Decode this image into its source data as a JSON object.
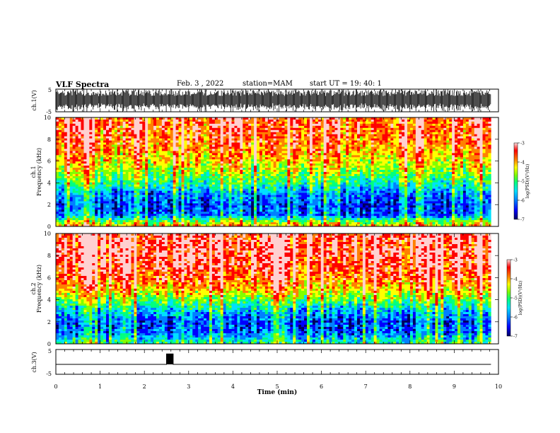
{
  "header": {
    "title": "VLF Spectra",
    "date": "Feb. 3  , 2022",
    "station": "station=MAM",
    "start": "start  UT  =   19: 40: 1"
  },
  "colors": {
    "spectrum": [
      "#000060",
      "#0000ff",
      "#0080ff",
      "#00e0ff",
      "#00ff80",
      "#80ff00",
      "#ffff00",
      "#ff8000",
      "#ff0000",
      "#ffd0d0"
    ]
  },
  "chart_data": [
    {
      "type": "line",
      "ylabel": "ch.1(V)",
      "ylim": [
        -5,
        5
      ],
      "yticks": [
        "5",
        "-5"
      ],
      "note": "dense broadband waveform"
    },
    {
      "type": "heatmap",
      "ylabel": "Frequency  (kHz)",
      "channel_label": "ch.1",
      "ylim": [
        0,
        10
      ],
      "yticks": [
        "0",
        "2",
        "4",
        "6",
        "8",
        "10"
      ],
      "colorbar": {
        "label": "log(PSD)(V²/Hz)",
        "ticks": [
          "-3",
          "-4",
          "-5",
          "-6",
          "-7"
        ],
        "range": [
          -7,
          -3
        ]
      },
      "profile": {
        "freq_khz": [
          0,
          0.5,
          1,
          2,
          3,
          4,
          5,
          6,
          7,
          8,
          9,
          10
        ],
        "log_psd": [
          -4.2,
          -5.0,
          -6.1,
          -6.3,
          -6.0,
          -5.3,
          -4.8,
          -4.4,
          -4.1,
          -3.9,
          -3.8,
          -3.8
        ]
      }
    },
    {
      "type": "heatmap",
      "ylabel": "Frequency  (kHz)",
      "channel_label": "ch.2",
      "ylim": [
        0,
        10
      ],
      "yticks": [
        "0",
        "2",
        "4",
        "6",
        "8",
        "10"
      ],
      "colorbar": {
        "label": "log(PSD)(V²/Hz)",
        "ticks": [
          "-3",
          "-4",
          "-5",
          "-6",
          "-7"
        ],
        "range": [
          -7,
          -3
        ]
      },
      "profile": {
        "freq_khz": [
          0,
          0.5,
          1,
          2,
          3,
          4,
          5,
          6,
          7,
          8,
          9,
          10
        ],
        "log_psd": [
          -5.2,
          -5.6,
          -6.1,
          -6.2,
          -5.7,
          -4.9,
          -4.2,
          -3.8,
          -3.6,
          -3.5,
          -3.5,
          -3.5
        ]
      }
    },
    {
      "type": "line",
      "ylabel": "ch.3(V)",
      "ylim": [
        -5,
        5
      ],
      "yticks": [
        "5",
        "-5"
      ],
      "x": [
        0,
        2.5,
        2.5,
        2.65,
        2.65,
        9.83
      ],
      "y": [
        -1,
        -1,
        3.2,
        3.2,
        -1,
        -1
      ]
    }
  ],
  "xaxis": {
    "label": "Time  (min)",
    "xlim": [
      0,
      10
    ],
    "ticks": [
      "0",
      "1",
      "2",
      "3",
      "4",
      "5",
      "6",
      "7",
      "8",
      "9",
      "10"
    ],
    "data_end": 9.83
  }
}
